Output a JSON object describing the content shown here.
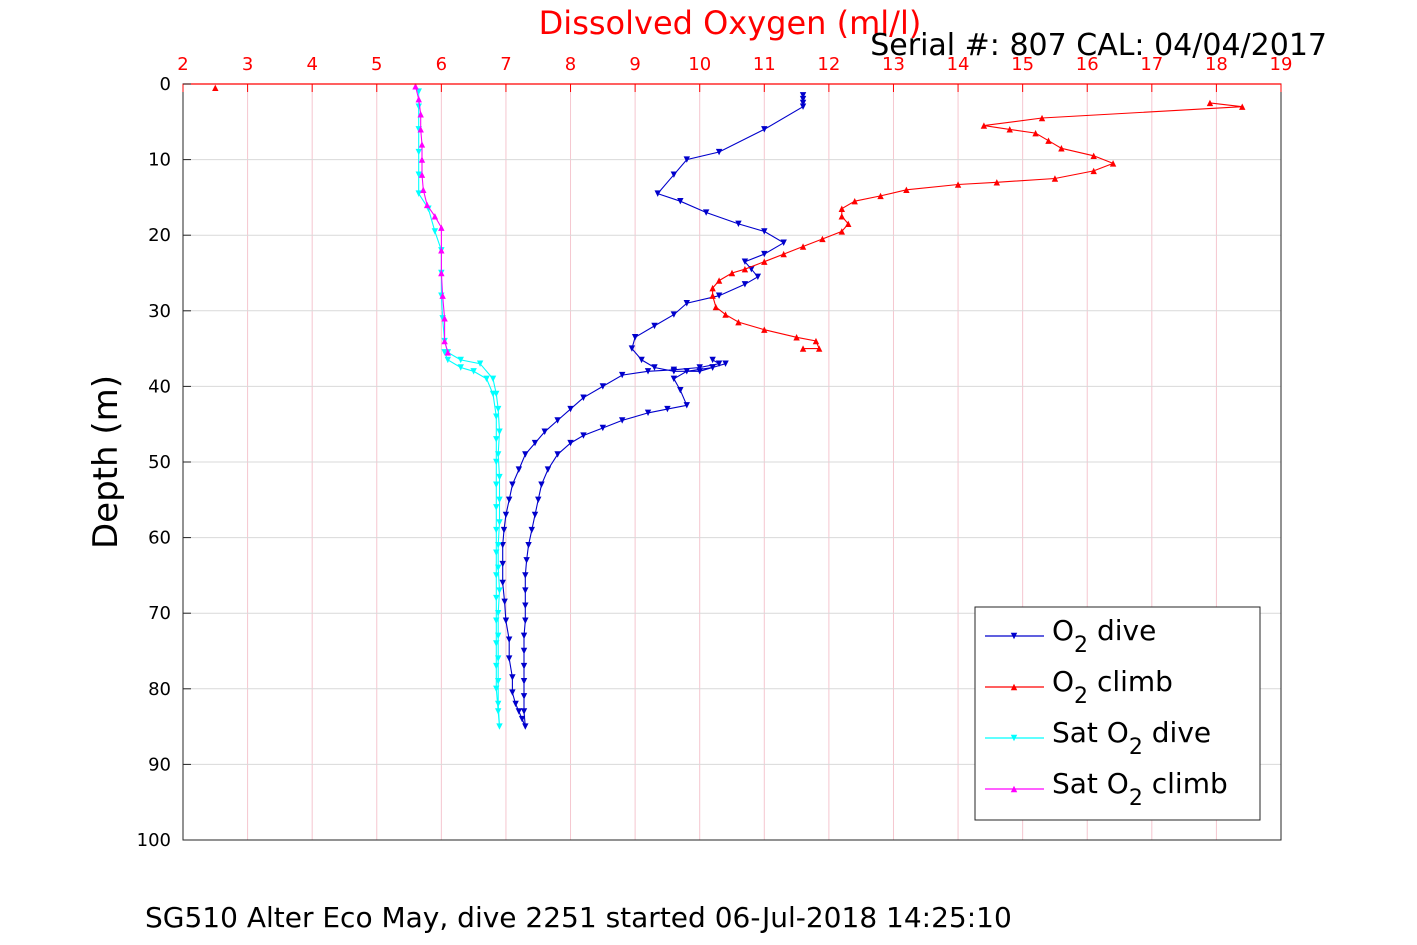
{
  "chart_data": {
    "type": "line",
    "title": "Dissolved Oxygen (ml/l)",
    "serial_label": "Serial #: 807  CAL: 04/04/2017",
    "caption": "SG510 Alter Eco May, dive 2251 started 06-Jul-2018 14:25:10",
    "ylabel": "Depth (m)",
    "xlabel": "",
    "xlim": [
      2,
      19
    ],
    "ylim": [
      0,
      100
    ],
    "y_reversed": true,
    "x_axis_position": "top",
    "grid": true,
    "legend_position": "bottom-right",
    "xticks": [
      "2",
      "3",
      "4",
      "5",
      "6",
      "7",
      "8",
      "9",
      "10",
      "11",
      "12",
      "13",
      "14",
      "15",
      "16",
      "17",
      "18",
      "19"
    ],
    "yticks": [
      "0",
      "10",
      "20",
      "30",
      "40",
      "50",
      "60",
      "70",
      "80",
      "90",
      "100"
    ],
    "colors": {
      "xaxis": "#ff0000",
      "grid_x": "#f5c6cf",
      "grid_y": "#d9d9d9",
      "o2_dive": "#0000cc",
      "o2_climb": "#ff0000",
      "sat_dive": "#00ffff",
      "sat_climb": "#ff00ff"
    },
    "series": [
      {
        "key": "o2_dive",
        "legend": {
          "pre": "O",
          "sub": "2",
          "post": " dive"
        },
        "marker": "down",
        "points": [
          [
            11.6,
            1.5
          ],
          [
            11.6,
            2.0
          ],
          [
            11.6,
            2.5
          ],
          [
            11.6,
            3.0
          ],
          [
            11.0,
            6.0
          ],
          [
            10.3,
            9.0
          ],
          [
            9.8,
            10.0
          ],
          [
            9.6,
            12.0
          ],
          [
            9.35,
            14.5
          ],
          [
            9.7,
            15.5
          ],
          [
            10.1,
            17.0
          ],
          [
            10.6,
            18.5
          ],
          [
            11.0,
            19.5
          ],
          [
            11.3,
            21.0
          ],
          [
            11.0,
            22.5
          ],
          [
            10.7,
            23.5
          ],
          [
            10.8,
            24.5
          ],
          [
            10.9,
            25.5
          ],
          [
            10.7,
            26.5
          ],
          [
            10.3,
            28.0
          ],
          [
            9.8,
            29.0
          ],
          [
            9.6,
            30.5
          ],
          [
            9.3,
            32.0
          ],
          [
            9.0,
            33.5
          ],
          [
            8.95,
            35.0
          ],
          [
            9.1,
            36.5
          ],
          [
            9.3,
            37.5
          ],
          [
            9.6,
            38.0
          ],
          [
            10.0,
            38.0
          ],
          [
            10.2,
            37.5
          ],
          [
            10.4,
            37.0
          ],
          [
            10.2,
            37.5
          ],
          [
            9.8,
            38.0
          ],
          [
            9.6,
            39.0
          ],
          [
            9.7,
            40.5
          ],
          [
            9.8,
            42.5
          ],
          [
            9.5,
            43.0
          ],
          [
            9.2,
            43.5
          ],
          [
            8.8,
            44.5
          ],
          [
            8.5,
            45.5
          ],
          [
            8.2,
            46.5
          ],
          [
            8.0,
            47.5
          ],
          [
            7.8,
            49.0
          ],
          [
            7.65,
            51.0
          ],
          [
            7.55,
            53.0
          ],
          [
            7.5,
            55.0
          ],
          [
            7.45,
            57.0
          ],
          [
            7.4,
            59.0
          ],
          [
            7.35,
            61.0
          ],
          [
            7.32,
            63.0
          ],
          [
            7.3,
            65.0
          ],
          [
            7.3,
            67.0
          ],
          [
            7.3,
            69.0
          ],
          [
            7.3,
            71.0
          ],
          [
            7.28,
            73.0
          ],
          [
            7.28,
            75.0
          ],
          [
            7.28,
            77.0
          ],
          [
            7.28,
            79.0
          ],
          [
            7.28,
            81.0
          ],
          [
            7.28,
            83.0
          ],
          [
            7.3,
            85.0
          ],
          [
            7.25,
            84.0
          ],
          [
            7.2,
            83.0
          ],
          [
            7.15,
            82.0
          ],
          [
            7.1,
            80.5
          ],
          [
            7.1,
            78.5
          ],
          [
            7.05,
            76.0
          ],
          [
            7.05,
            73.5
          ],
          [
            7.0,
            71.0
          ],
          [
            6.98,
            68.5
          ],
          [
            6.95,
            66.0
          ],
          [
            6.95,
            63.5
          ],
          [
            6.95,
            61.0
          ],
          [
            6.97,
            59.0
          ],
          [
            7.0,
            57.0
          ],
          [
            7.05,
            55.0
          ],
          [
            7.1,
            53.0
          ],
          [
            7.2,
            51.0
          ],
          [
            7.3,
            49.0
          ],
          [
            7.45,
            47.5
          ],
          [
            7.6,
            46.0
          ],
          [
            7.8,
            44.5
          ],
          [
            8.0,
            43.0
          ],
          [
            8.2,
            41.5
          ],
          [
            8.5,
            40.0
          ],
          [
            8.8,
            38.5
          ],
          [
            9.2,
            38.0
          ],
          [
            9.6,
            37.8
          ],
          [
            10.0,
            37.5
          ],
          [
            10.3,
            37.0
          ],
          [
            10.2,
            36.5
          ]
        ]
      },
      {
        "key": "o2_climb",
        "legend": {
          "pre": "O",
          "sub": "2",
          "post": " climb"
        },
        "marker": "up",
        "points": [
          [
            11.6,
            35.0
          ],
          [
            11.85,
            35.0
          ],
          [
            11.8,
            34.0
          ],
          [
            11.5,
            33.5
          ],
          [
            11.0,
            32.5
          ],
          [
            10.6,
            31.5
          ],
          [
            10.4,
            30.5
          ],
          [
            10.25,
            29.5
          ],
          [
            10.2,
            28.0
          ],
          [
            10.2,
            27.0
          ],
          [
            10.3,
            26.0
          ],
          [
            10.5,
            25.0
          ],
          [
            10.7,
            24.5
          ],
          [
            11.0,
            23.5
          ],
          [
            11.3,
            22.5
          ],
          [
            11.6,
            21.5
          ],
          [
            11.9,
            20.5
          ],
          [
            12.2,
            19.5
          ],
          [
            12.3,
            18.5
          ],
          [
            12.2,
            17.5
          ],
          [
            12.2,
            16.5
          ],
          [
            12.4,
            15.5
          ],
          [
            12.8,
            14.8
          ],
          [
            13.2,
            14.0
          ],
          [
            14.0,
            13.3
          ],
          [
            14.6,
            13.0
          ],
          [
            15.5,
            12.5
          ],
          [
            16.1,
            11.5
          ],
          [
            16.4,
            10.5
          ],
          [
            16.1,
            9.5
          ],
          [
            15.6,
            8.5
          ],
          [
            15.4,
            7.5
          ],
          [
            15.2,
            6.5
          ],
          [
            14.8,
            6.0
          ],
          [
            14.4,
            5.5
          ],
          [
            15.3,
            4.5
          ],
          [
            18.4,
            3.0
          ],
          [
            17.9,
            2.5
          ]
        ]
      },
      {
        "key": "sat_dive",
        "legend": {
          "pre": "Sat O",
          "sub": "2",
          "post": " dive"
        },
        "marker": "down",
        "points": [
          [
            5.65,
            1.0
          ],
          [
            5.65,
            3.0
          ],
          [
            5.65,
            6.0
          ],
          [
            5.65,
            9.0
          ],
          [
            5.65,
            12.0
          ],
          [
            5.65,
            14.5
          ],
          [
            5.8,
            16.5
          ],
          [
            5.9,
            19.5
          ],
          [
            6.0,
            22.0
          ],
          [
            6.0,
            25.0
          ],
          [
            6.0,
            28.0
          ],
          [
            6.02,
            31.0
          ],
          [
            6.05,
            34.0
          ],
          [
            6.1,
            35.5
          ],
          [
            6.3,
            36.5
          ],
          [
            6.6,
            37.0
          ],
          [
            6.8,
            39.0
          ],
          [
            6.85,
            41.0
          ],
          [
            6.88,
            43.0
          ],
          [
            6.9,
            46.0
          ],
          [
            6.88,
            49.0
          ],
          [
            6.9,
            52.0
          ],
          [
            6.9,
            55.0
          ],
          [
            6.9,
            58.0
          ],
          [
            6.88,
            61.0
          ],
          [
            6.88,
            64.0
          ],
          [
            6.9,
            67.0
          ],
          [
            6.88,
            70.0
          ],
          [
            6.88,
            73.0
          ],
          [
            6.88,
            76.0
          ],
          [
            6.88,
            79.0
          ],
          [
            6.88,
            82.0
          ],
          [
            6.9,
            85.0
          ],
          [
            6.88,
            83.0
          ],
          [
            6.85,
            80.0
          ],
          [
            6.85,
            77.0
          ],
          [
            6.85,
            74.0
          ],
          [
            6.85,
            71.0
          ],
          [
            6.85,
            68.0
          ],
          [
            6.85,
            65.0
          ],
          [
            6.85,
            62.0
          ],
          [
            6.85,
            59.0
          ],
          [
            6.85,
            56.0
          ],
          [
            6.85,
            53.0
          ],
          [
            6.85,
            50.0
          ],
          [
            6.85,
            47.0
          ],
          [
            6.85,
            44.0
          ],
          [
            6.8,
            41.0
          ],
          [
            6.7,
            39.0
          ],
          [
            6.5,
            38.0
          ],
          [
            6.3,
            37.5
          ],
          [
            6.1,
            36.5
          ],
          [
            6.05,
            35.5
          ]
        ]
      },
      {
        "key": "sat_climb",
        "legend": {
          "pre": "Sat O",
          "sub": "2",
          "post": " climb"
        },
        "marker": "up",
        "points": [
          [
            6.1,
            35.5
          ],
          [
            6.05,
            34.0
          ],
          [
            6.05,
            31.0
          ],
          [
            6.02,
            28.0
          ],
          [
            6.0,
            25.0
          ],
          [
            6.0,
            22.0
          ],
          [
            6.0,
            19.0
          ],
          [
            5.9,
            17.5
          ],
          [
            5.78,
            16.0
          ],
          [
            5.72,
            14.0
          ],
          [
            5.7,
            12.0
          ],
          [
            5.7,
            10.0
          ],
          [
            5.7,
            8.0
          ],
          [
            5.68,
            6.0
          ],
          [
            5.68,
            4.0
          ],
          [
            5.65,
            2.0
          ],
          [
            5.6,
            0.3
          ]
        ]
      }
    ],
    "markers_only": [
      {
        "key": "o2_climb",
        "marker": "up",
        "point": [
          2.5,
          0.5
        ]
      }
    ]
  }
}
